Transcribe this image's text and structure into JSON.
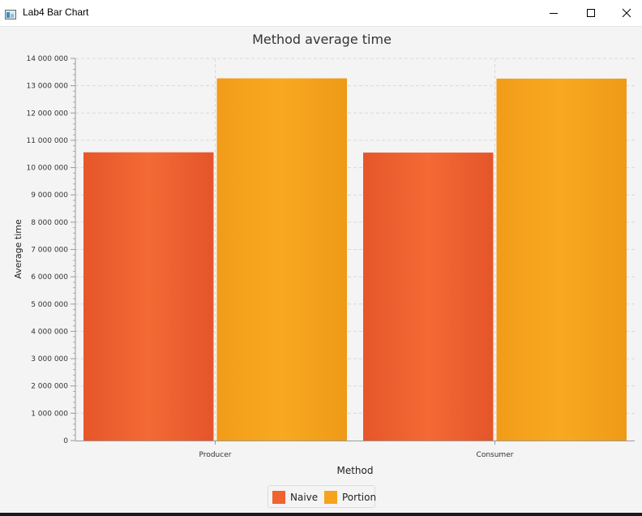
{
  "window": {
    "title": "Lab4 Bar Chart",
    "controls": [
      "minimize",
      "maximize",
      "close"
    ]
  },
  "chart_data": {
    "type": "bar",
    "title": "Method average time",
    "xlabel": "Method",
    "ylabel": "Average time",
    "categories": [
      "Producer",
      "Consumer"
    ],
    "series": [
      {
        "name": "Naive",
        "color": "#f0622f",
        "values": [
          10560000,
          10550000
        ]
      },
      {
        "name": "Portion",
        "color": "#f5a31c",
        "values": [
          13270000,
          13260000
        ]
      }
    ],
    "ylim": [
      0,
      14000000
    ],
    "yticks": [
      {
        "value": 0,
        "label": "0"
      },
      {
        "value": 1000000,
        "label": "1 000 000"
      },
      {
        "value": 2000000,
        "label": "2 000 000"
      },
      {
        "value": 3000000,
        "label": "3 000 000"
      },
      {
        "value": 4000000,
        "label": "4 000 000"
      },
      {
        "value": 5000000,
        "label": "5 000 000"
      },
      {
        "value": 6000000,
        "label": "6 000 000"
      },
      {
        "value": 7000000,
        "label": "7 000 000"
      },
      {
        "value": 8000000,
        "label": "8 000 000"
      },
      {
        "value": 9000000,
        "label": "9 000 000"
      },
      {
        "value": 10000000,
        "label": "10 000 000"
      },
      {
        "value": 11000000,
        "label": "11 000 000"
      },
      {
        "value": 12000000,
        "label": "12 000 000"
      },
      {
        "value": 13000000,
        "label": "13 000 000"
      },
      {
        "value": 14000000,
        "label": "14 000 000"
      }
    ],
    "grid": true,
    "legend_position": "bottom-center"
  }
}
